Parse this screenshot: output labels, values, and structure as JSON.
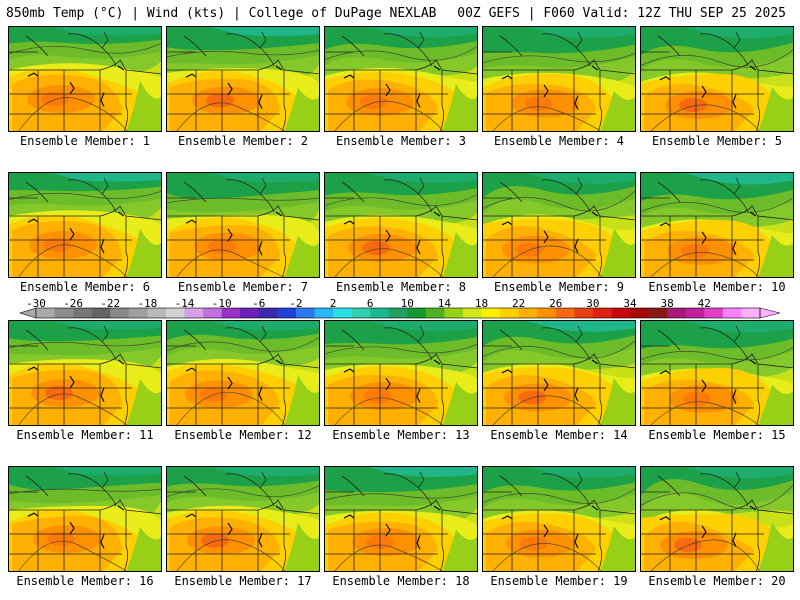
{
  "header": {
    "left_title": "850mb Temp (°C) | Wind (kts) | College of DuPage NEXLAB",
    "right_title": "00Z GEFS | F060 Valid: 12Z THU SEP 25 2025"
  },
  "panels": [
    {
      "label": "Ensemble Member: 1"
    },
    {
      "label": "Ensemble Member: 2"
    },
    {
      "label": "Ensemble Member: 3"
    },
    {
      "label": "Ensemble Member: 4"
    },
    {
      "label": "Ensemble Member: 5"
    },
    {
      "label": "Ensemble Member: 6"
    },
    {
      "label": "Ensemble Member: 7"
    },
    {
      "label": "Ensemble Member: 8"
    },
    {
      "label": "Ensemble Member: 9"
    },
    {
      "label": "Ensemble Member: 10"
    },
    {
      "label": "Ensemble Member: 11"
    },
    {
      "label": "Ensemble Member: 12"
    },
    {
      "label": "Ensemble Member: 13"
    },
    {
      "label": "Ensemble Member: 14"
    },
    {
      "label": "Ensemble Member: 15"
    },
    {
      "label": "Ensemble Member: 16"
    },
    {
      "label": "Ensemble Member: 17"
    },
    {
      "label": "Ensemble Member: 18"
    },
    {
      "label": "Ensemble Member: 19"
    },
    {
      "label": "Ensemble Member: 20"
    }
  ],
  "colorbar": {
    "labels": [
      "-30",
      "-26",
      "-22",
      "-18",
      "-14",
      "-10",
      "-6",
      "-2",
      "2",
      "6",
      "10",
      "14",
      "18",
      "22",
      "26",
      "30",
      "34",
      "38",
      "42"
    ],
    "colors": [
      "#a9a9a9",
      "#8c8c8c",
      "#777777",
      "#646464",
      "#888888",
      "#9f9f9f",
      "#b8b8b8",
      "#d2d2d2",
      "#d7a0e8",
      "#c070e0",
      "#9a30c8",
      "#6a22b8",
      "#3a2ab0",
      "#2040d8",
      "#2a78f0",
      "#28b8f8",
      "#28e0e8",
      "#30d0b0",
      "#1cb890",
      "#20a060",
      "#169a30",
      "#50b020",
      "#98d018",
      "#d0e818",
      "#fff000",
      "#ffd000",
      "#ffb000",
      "#ff9000",
      "#f86810",
      "#e84010",
      "#e02010",
      "#c80808",
      "#a80808",
      "#881818",
      "#a81878",
      "#c020a0",
      "#e040c8",
      "#ff80ff",
      "#ffb0ff"
    ]
  }
}
